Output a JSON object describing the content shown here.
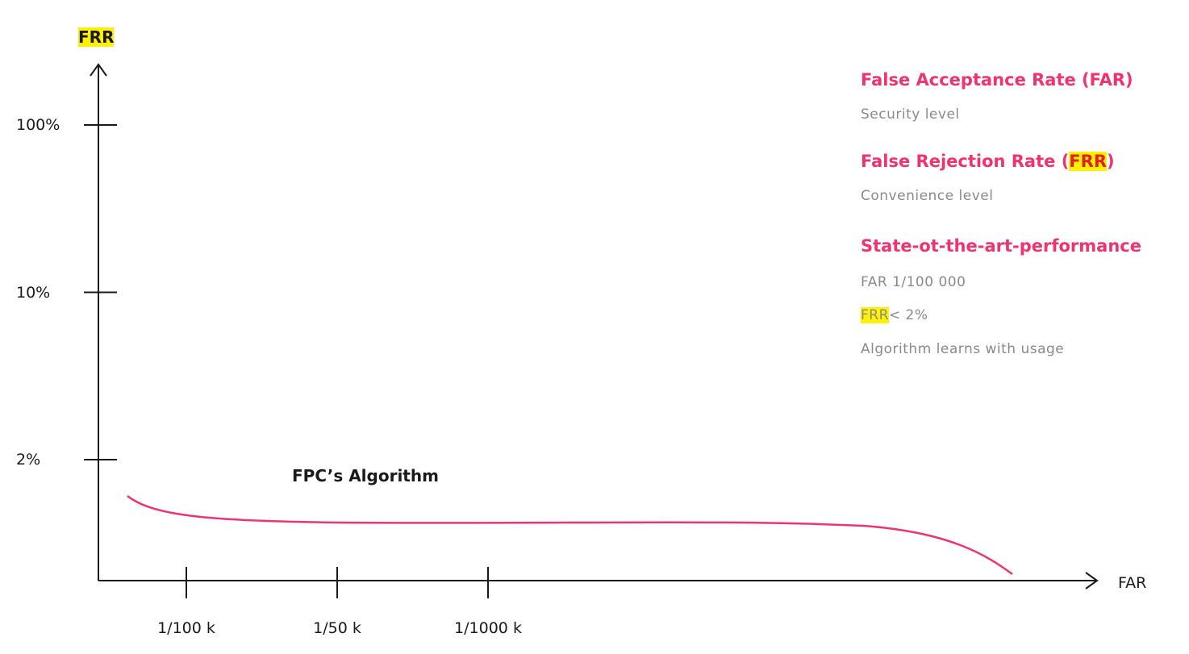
{
  "axes": {
    "y_label": "FRR",
    "x_label": "FAR",
    "y_ticks": [
      "100%",
      "10%",
      "2%"
    ],
    "x_ticks": [
      "1/100 k",
      "1/50 k",
      "1/1000 k"
    ],
    "curve_label": "FPC’s Algorithm"
  },
  "notes": {
    "far_heading": "False Acceptance Rate (FAR)",
    "far_text": "Security level",
    "frr_heading": [
      "False Rejection Rate (",
      "FRR",
      ")"
    ],
    "frr_text": "Convenience level",
    "perf_heading": "State-ot-the-art-performance",
    "perf_items": [
      "FAR 1/100 000",
      [
        "FRR",
        "< 2%"
      ],
      "Algorithm learns with usage"
    ]
  }
}
